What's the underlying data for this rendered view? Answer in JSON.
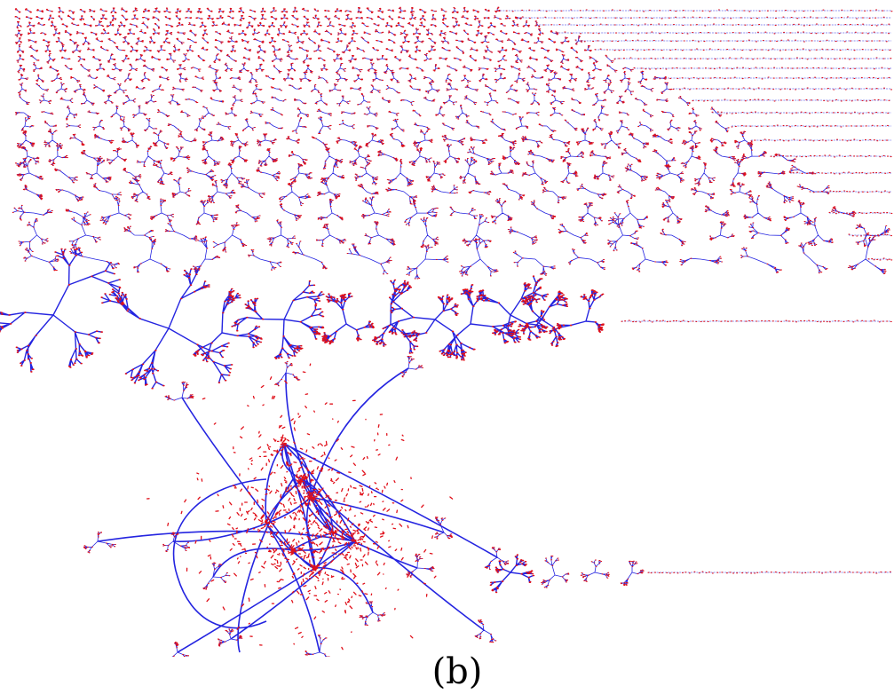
{
  "panel_label": "(b)",
  "colors": {
    "edge": "#2424e0",
    "node": "#e0101a",
    "background": "#ffffff"
  },
  "visual": {
    "kind": "network-components",
    "description_elements": [
      "component-grid",
      "medium-component-row",
      "giant-component",
      "component-tail"
    ]
  }
}
